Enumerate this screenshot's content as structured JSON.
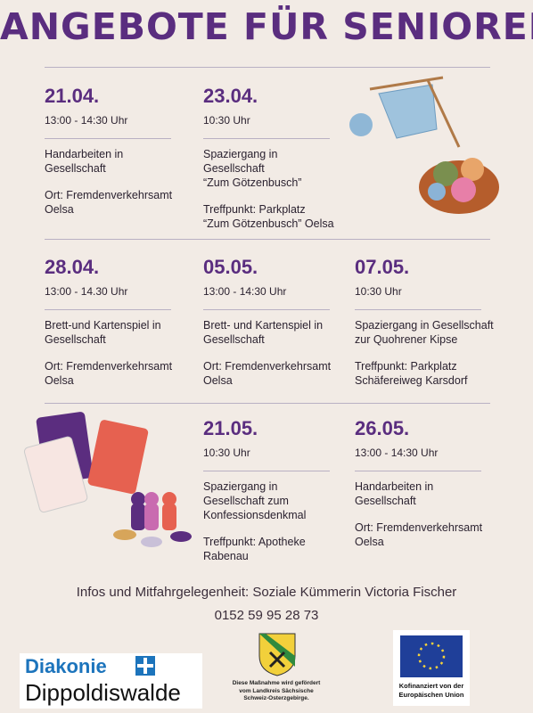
{
  "header": {
    "title": "ANGEBOTE FÜR SENIOREN"
  },
  "events": [
    {
      "date": "21.04.",
      "time": "13:00 - 14:30 Uhr",
      "activity": [
        "Handarbeiten in",
        "Gesellschaft"
      ],
      "place": [
        "Ort: Fremdenverkehrsamt",
        "Oelsa"
      ]
    },
    {
      "date": "23.04.",
      "time": "10:30 Uhr",
      "activity": [
        "Spaziergang in",
        "Gesellschaft",
        "“Zum Götzenbusch”"
      ],
      "place": [
        "Treffpunkt: Parkplatz",
        "“Zum Götzenbusch” Oelsa"
      ]
    },
    {
      "date": "28.04.",
      "time": "13:00 - 14.30 Uhr",
      "activity": [
        "Brett-und Kartenspiel in",
        "Gesellschaft"
      ],
      "place": [
        "Ort: Fremdenverkehrsamt",
        "Oelsa"
      ]
    },
    {
      "date": "05.05.",
      "time": "13:00 - 14:30 Uhr",
      "activity": [
        "Brett- und Kartenspiel in",
        "Gesellschaft"
      ],
      "place": [
        "Ort: Fremdenverkehrsamt",
        "Oelsa"
      ]
    },
    {
      "date": "07.05.",
      "time": "10:30 Uhr",
      "activity": [
        "Spaziergang in Gesellschaft",
        "zur Quohrener Kipse"
      ],
      "place": [
        "Treffpunkt: Parkplatz",
        "Schäfereiweg Karsdorf"
      ]
    },
    {
      "date": "21.05.",
      "time": "10:30 Uhr",
      "activity": [
        "Spaziergang in",
        "Gesellschaft zum",
        "Konfessionsdenkmal"
      ],
      "place": [
        "Treffpunkt: Apotheke",
        "Rabenau"
      ]
    },
    {
      "date": "26.05.",
      "time": "13:00 - 14:30 Uhr",
      "activity": [
        "Handarbeiten in",
        "Gesellschaft"
      ],
      "place": [
        "Ort: Fremdenverkehrsamt",
        "Oelsa"
      ]
    }
  ],
  "footer": {
    "info": "Infos und Mitfahrgelegenheit: Soziale Kümmerin Victoria Fischer",
    "phone": "0152 59 95 28 73",
    "logos": {
      "diakonie": "Diakonie",
      "city": "Dippoldiswalde",
      "district": [
        "Diese Maßnahme wird gefördert",
        "vom Landkreis Sächsische",
        "Schweiz-Osterzgebirge."
      ],
      "eu": [
        "Kofinanziert von der",
        "Europäischen Union"
      ]
    }
  }
}
